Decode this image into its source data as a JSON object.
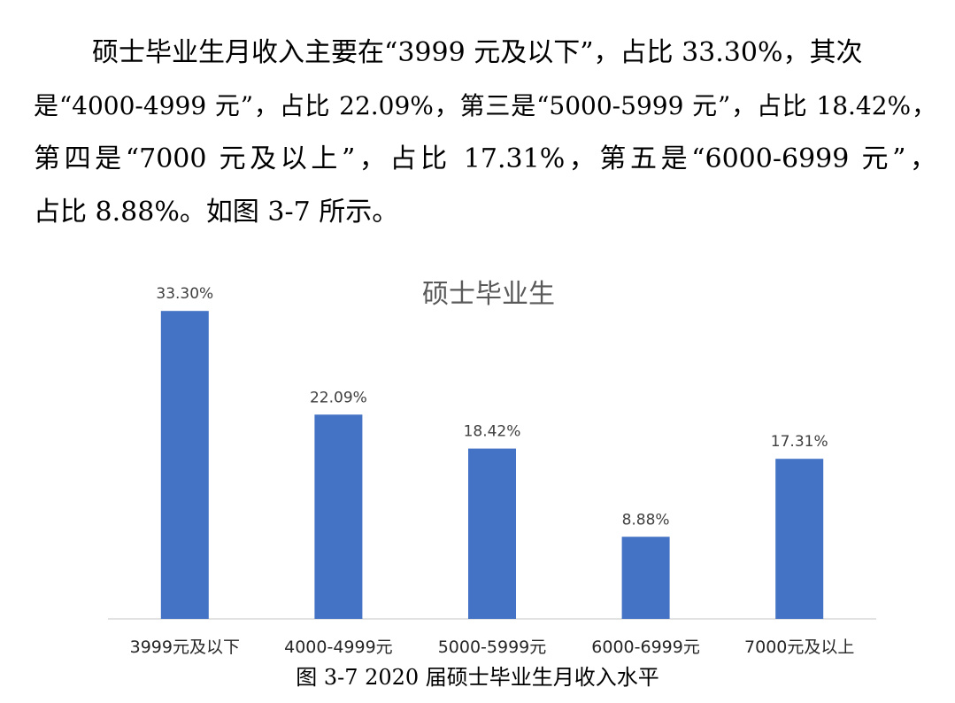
{
  "paragraph": {
    "lines": [
      "硕士毕业生月收入主要在“3999 元及以下”，占比 33.30%，其次",
      "是“4000-4999 元”，占比 22.09%，第三是“5000-5999 元”，占比 18.42%，",
      "第四是“7000 元及以上”，占比 17.31%，第五是“6000-6999 元”，",
      "占比 8.88%。如图 3-7 所示。"
    ]
  },
  "chart_data": {
    "type": "bar",
    "title": "硕士毕业生",
    "categories": [
      "3999元及以下",
      "4000-4999元",
      "5000-5999元",
      "6000-6999元",
      "7000元及以上"
    ],
    "series": [
      {
        "values": [
          33.3,
          22.09,
          18.42,
          8.88,
          17.31
        ]
      }
    ],
    "data_labels": [
      "33.30%",
      "22.09%",
      "18.42%",
      "8.88%",
      "17.31%"
    ],
    "unit": "%",
    "ylim": [
      0,
      36
    ],
    "grid": false,
    "legend": "none",
    "bar_color": "#4472C4"
  },
  "caption": "图 3-7 2020 届硕士毕业生月收入水平"
}
